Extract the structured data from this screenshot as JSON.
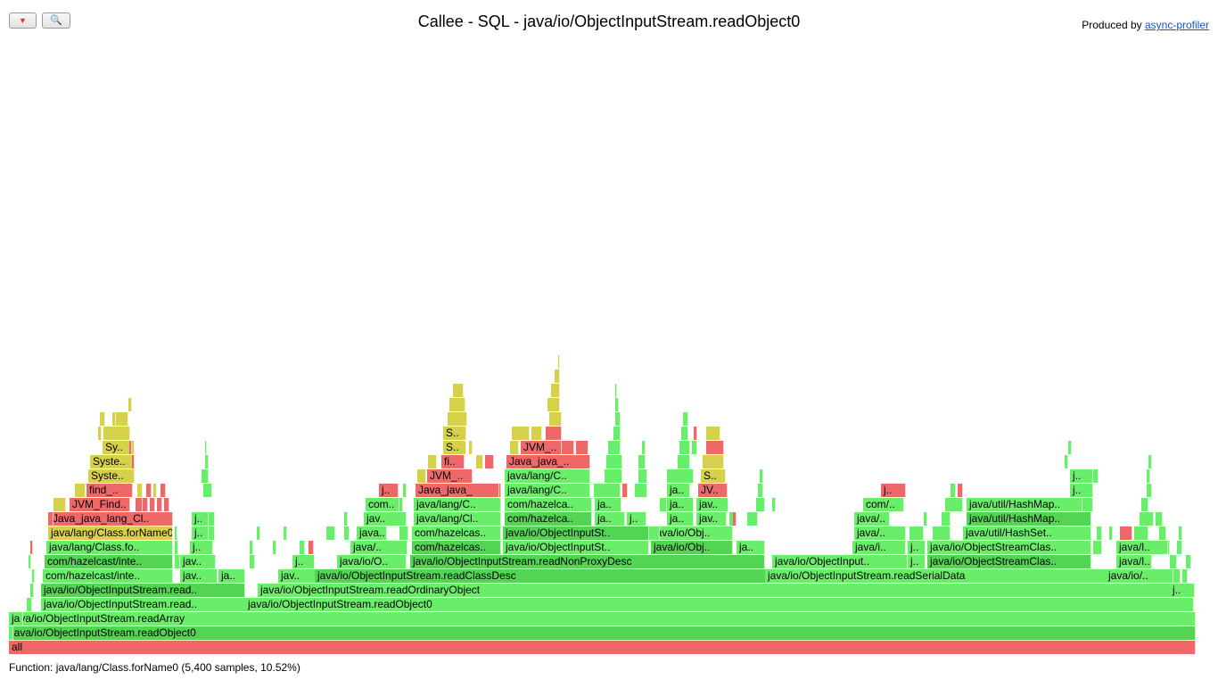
{
  "header": {
    "title": "Callee - SQL - java/io/ObjectInputStream.readObject0",
    "produced_by": "Produced by ",
    "profiler_link": "async-profiler",
    "reverse_icon": "▼",
    "search_icon": "🔍"
  },
  "colors": {
    "red": "#ee6868",
    "green": "#69ee69",
    "green_dark": "#52d552",
    "yellow": "#d7d04a"
  },
  "status_text": "Function: java/lang/Class.forName0 (5,400 samples, 10.52%)",
  "frames": [
    {
      "label": "all",
      "color": "red"
    },
    {
      "label": "java/io/ObjectInputStream.readObject0",
      "color": "green_dark"
    },
    {
      "label": "java/io/ObjectInputStream.readArray",
      "color": "green"
    },
    {
      "label": "java/io/ObjectInputStream.read..",
      "color": "green"
    },
    {
      "label": "java/io/ObjectInputStream.readObject0",
      "color": "green"
    },
    {
      "label": "java/io/ObjectInputStream.read..",
      "color": "green_dark"
    },
    {
      "label": "java/io/ObjectInputStream.readOrdinaryObject",
      "color": "green"
    },
    {
      "label": "j..",
      "color": "green"
    },
    {
      "label": "com/hazelcast/inte..",
      "color": "green"
    },
    {
      "label": "jav..",
      "color": "green"
    },
    {
      "label": "ja..",
      "color": "green"
    },
    {
      "label": "jav..",
      "color": "green"
    },
    {
      "label": "java/io/ObjectInputStream.readClassDesc",
      "color": "green_dark"
    },
    {
      "label": "java/io/ObjectInputStream.readSerialData",
      "color": "green"
    },
    {
      "label": "java/io/..",
      "color": "green"
    },
    {
      "label": "com/hazelcast/inte..",
      "color": "green_dark"
    },
    {
      "label": "jav..",
      "color": "green"
    },
    {
      "label": "j..",
      "color": "green"
    },
    {
      "label": "java/io/O..",
      "color": "green"
    },
    {
      "label": "java/io/ObjectInputStream.readNonProxyDesc",
      "color": "green_dark"
    },
    {
      "label": "java/io/ObjectInput..",
      "color": "green"
    },
    {
      "label": "j..",
      "color": "green"
    },
    {
      "label": "java/io/ObjectStreamClas..",
      "color": "green_dark"
    },
    {
      "label": "java/l..",
      "color": "green"
    },
    {
      "label": "java/lang/Class.fo..",
      "color": "green"
    },
    {
      "label": "j..",
      "color": "green"
    },
    {
      "label": "java/..",
      "color": "green"
    },
    {
      "label": "com/hazelcas..",
      "color": "green_dark"
    },
    {
      "label": "java/io/ObjectInputSt..",
      "color": "green"
    },
    {
      "label": "java/io/Obj..",
      "color": "green_dark"
    },
    {
      "label": "ja..",
      "color": "green"
    },
    {
      "label": "java/i..",
      "color": "green"
    },
    {
      "label": "j..",
      "color": "green"
    },
    {
      "label": "java/io/ObjectStreamClas..",
      "color": "green"
    },
    {
      "label": "java/l..",
      "color": "green"
    },
    {
      "label": "java/lang/Class.forName0",
      "color": "yellow"
    },
    {
      "label": "j..",
      "color": "green"
    },
    {
      "label": "java..",
      "color": "green"
    },
    {
      "label": "com/hazelcas..",
      "color": "green"
    },
    {
      "label": "java/io/ObjectInputSt..",
      "color": "green_dark"
    },
    {
      "label": "java/io/Obj..",
      "color": "green"
    },
    {
      "label": "java/..",
      "color": "green"
    },
    {
      "label": "java/util/HashSet..",
      "color": "green"
    },
    {
      "label": "Java_java_lang_Cl..",
      "color": "red"
    },
    {
      "label": "j..",
      "color": "green"
    },
    {
      "label": "jav..",
      "color": "green"
    },
    {
      "label": "java/lang/Cl..",
      "color": "green"
    },
    {
      "label": "com/hazelca..",
      "color": "green_dark"
    },
    {
      "label": "ja..",
      "color": "green"
    },
    {
      "label": "j..",
      "color": "green"
    },
    {
      "label": "ja..",
      "color": "green"
    },
    {
      "label": "jav..",
      "color": "green"
    },
    {
      "label": "java/..",
      "color": "green"
    },
    {
      "label": "java/util/HashMap..",
      "color": "green_dark"
    },
    {
      "label": "JVM_Find..",
      "color": "red"
    },
    {
      "label": "com..",
      "color": "green"
    },
    {
      "label": "java/lang/C..",
      "color": "green"
    },
    {
      "label": "com/hazelca..",
      "color": "green"
    },
    {
      "label": "ja..",
      "color": "green"
    },
    {
      "label": "ja..",
      "color": "green"
    },
    {
      "label": "jav..",
      "color": "green"
    },
    {
      "label": "com/..",
      "color": "green"
    },
    {
      "label": "java/util/HashMap..",
      "color": "green"
    },
    {
      "label": "find_..",
      "color": "red"
    },
    {
      "label": "j..",
      "color": "red"
    },
    {
      "label": "Java_java_l..",
      "color": "red"
    },
    {
      "label": "java/lang/C..",
      "color": "green"
    },
    {
      "label": "ja..",
      "color": "green"
    },
    {
      "label": "JV..",
      "color": "red"
    },
    {
      "label": "j..",
      "color": "red"
    },
    {
      "label": "j..",
      "color": "green"
    },
    {
      "label": "Syste..",
      "color": "yellow"
    },
    {
      "label": "JVM_..",
      "color": "red"
    },
    {
      "label": "java/lang/C..",
      "color": "green"
    },
    {
      "label": "S..",
      "color": "yellow"
    },
    {
      "label": "j..",
      "color": "green"
    },
    {
      "label": "Syste..",
      "color": "yellow"
    },
    {
      "label": "fi..",
      "color": "red"
    },
    {
      "label": "Java_java_..",
      "color": "red"
    },
    {
      "label": "Sy..",
      "color": "yellow"
    },
    {
      "label": "S..",
      "color": "yellow"
    },
    {
      "label": "JVM_..",
      "color": "red"
    },
    {
      "label": "S..",
      "color": "yellow"
    }
  ]
}
